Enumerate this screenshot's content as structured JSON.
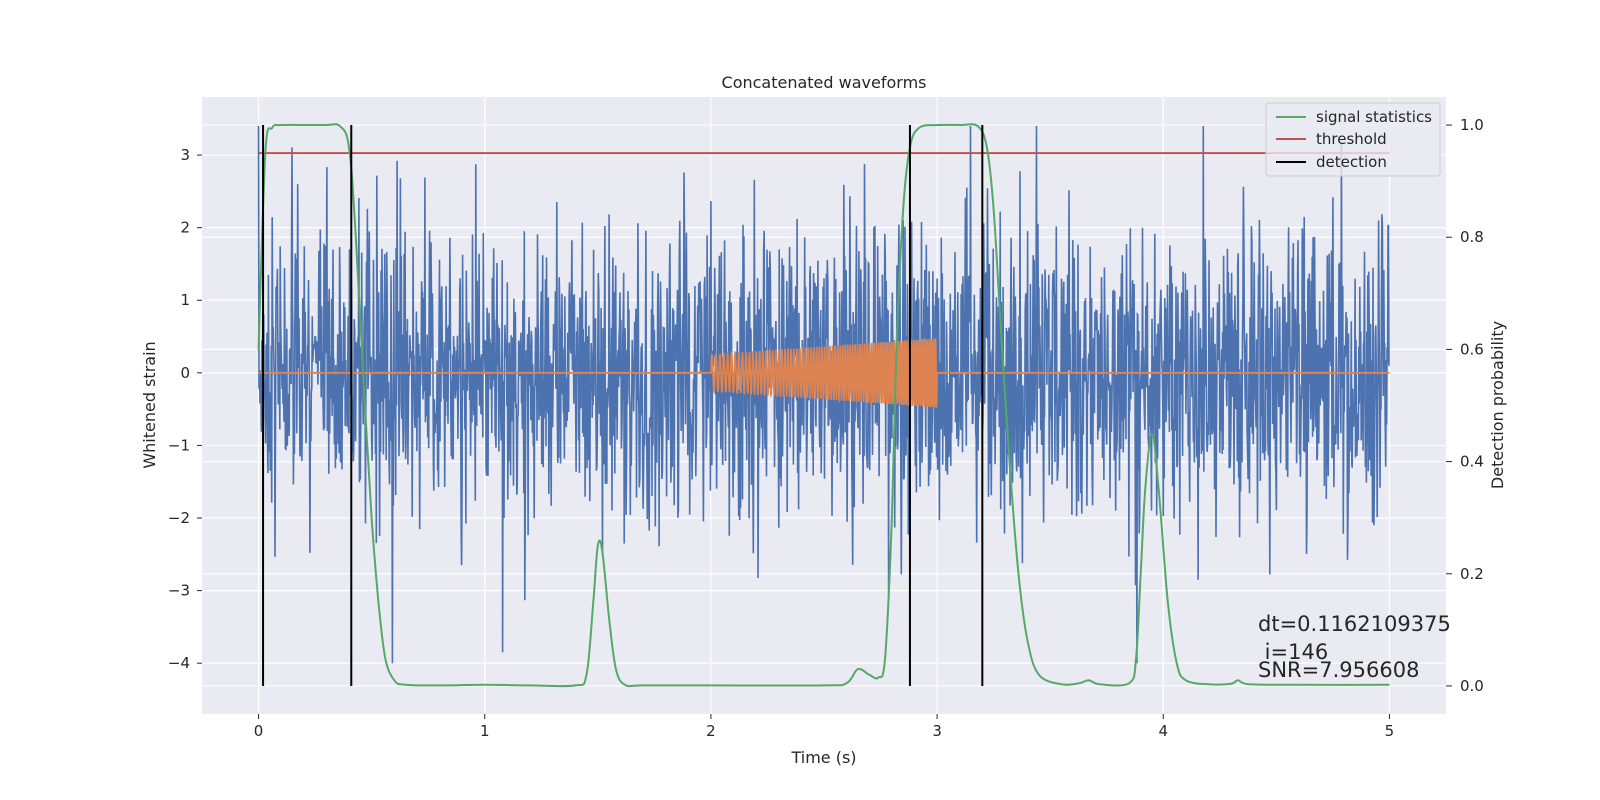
{
  "chart_data": {
    "type": "line",
    "title": "Concatenated waveforms",
    "xlabel": "Time (s)",
    "ylabel": "Whitened strain",
    "y2label": "Detection probability",
    "xlim": [
      -0.25,
      5.25
    ],
    "ylim": [
      -4.7,
      3.8
    ],
    "y2lim": [
      -0.05,
      1.05
    ],
    "xticks": [
      "0",
      "1",
      "2",
      "3",
      "4",
      "5"
    ],
    "yticks": [
      "3",
      "2",
      "1",
      "0",
      "−1",
      "−2",
      "−3",
      "−4"
    ],
    "y2ticks": [
      "1.0",
      "0.8",
      "0.6",
      "0.4",
      "0.2",
      "0.0"
    ],
    "grid": true,
    "legend_position": "top-right",
    "colors": {
      "strain": "#4c72b0",
      "waveform": "#dd8452",
      "signal": "#55a868",
      "threshold": "#c44e52",
      "detection": "#000000",
      "background": "#eaeaf2",
      "grid": "#ffffff"
    },
    "series": [
      {
        "id": "strain",
        "description_axis": "left",
        "x_range": [
          0,
          5
        ],
        "amplitude_typical": 1.3,
        "amplitude_extreme": [
          -4.0,
          3.4
        ]
      },
      {
        "id": "waveform",
        "description_axis": "left",
        "x_range": [
          2.0,
          3.0
        ],
        "envelope_start": 0.25,
        "envelope_end": 0.48
      },
      {
        "name": "signal statistics",
        "axis": "right",
        "x": [
          0,
          0.03,
          0.06,
          0.1,
          0.2,
          0.3,
          0.36,
          0.4,
          0.43,
          0.47,
          0.5,
          0.53,
          0.56,
          0.6,
          0.65,
          0.8,
          1.0,
          1.2,
          1.4,
          1.45,
          1.48,
          1.5,
          1.52,
          1.55,
          1.58,
          1.62,
          1.7,
          2.0,
          2.5,
          2.6,
          2.65,
          2.7,
          2.74,
          2.77,
          2.8,
          2.82,
          2.85,
          2.88,
          2.92,
          3.0,
          3.1,
          3.18,
          3.22,
          3.25,
          3.28,
          3.32,
          3.36,
          3.4,
          3.45,
          3.55,
          3.63,
          3.67,
          3.72,
          3.85,
          3.88,
          3.9,
          3.92,
          3.95,
          3.98,
          4.02,
          4.06,
          4.1,
          4.2,
          4.3,
          4.33,
          4.38,
          4.6,
          5.0
        ],
        "y": [
          0.6,
          0.95,
          0.995,
          1.0,
          1.0,
          1.0,
          0.998,
          0.96,
          0.8,
          0.5,
          0.3,
          0.15,
          0.05,
          0.01,
          0.002,
          0.001,
          0.002,
          0.001,
          0.001,
          0.02,
          0.15,
          0.25,
          0.24,
          0.12,
          0.03,
          0.002,
          0.001,
          0.001,
          0.001,
          0.005,
          0.03,
          0.02,
          0.015,
          0.05,
          0.3,
          0.6,
          0.85,
          0.96,
          0.995,
          1.0,
          1.0,
          0.998,
          0.96,
          0.85,
          0.65,
          0.4,
          0.2,
          0.08,
          0.02,
          0.003,
          0.005,
          0.01,
          0.003,
          0.005,
          0.05,
          0.2,
          0.35,
          0.45,
          0.35,
          0.15,
          0.04,
          0.01,
          0.003,
          0.004,
          0.01,
          0.003,
          0.002,
          0.002
        ]
      },
      {
        "name": "threshold",
        "axis": "right",
        "x": [
          0,
          5
        ],
        "y": [
          0.95,
          0.95
        ]
      },
      {
        "name": "detection",
        "axis": "right",
        "x_positions": [
          0.02,
          0.41,
          2.88,
          3.2
        ],
        "y_range": [
          0.0,
          1.0
        ]
      }
    ],
    "annotation": {
      "line1": "dt=0.1162109375",
      "line2": " i=146",
      "line3": "SNR=7.956608"
    }
  }
}
